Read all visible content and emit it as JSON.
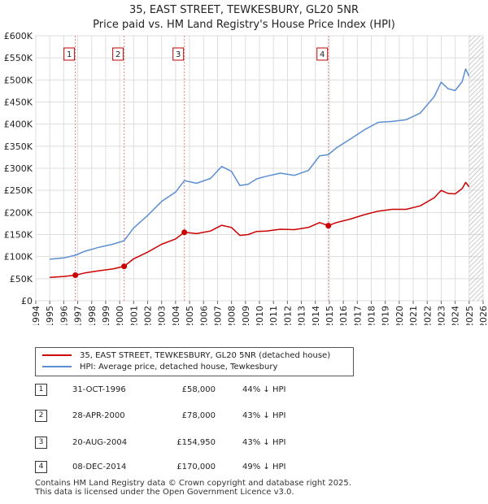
{
  "chart_data": {
    "type": "line",
    "title": "35, EAST STREET, TEWKESBURY, GL20 5NR",
    "subtitle": "Price paid vs. HM Land Registry's House Price Index (HPI)",
    "x_ticks": [
      "1994",
      "1995",
      "1996",
      "1997",
      "1998",
      "1999",
      "2000",
      "2001",
      "2002",
      "2003",
      "2004",
      "2005",
      "2006",
      "2007",
      "2008",
      "2009",
      "2010",
      "2011",
      "2012",
      "2013",
      "2014",
      "2015",
      "2016",
      "2017",
      "2018",
      "2019",
      "2020",
      "2021",
      "2022",
      "2023",
      "2024",
      "2025",
      "2026"
    ],
    "y_ticks": [
      "£0",
      "£50K",
      "£100K",
      "£150K",
      "£200K",
      "£250K",
      "£300K",
      "£350K",
      "£400K",
      "£450K",
      "£500K",
      "£550K",
      "£600K"
    ],
    "xlim": [
      1994,
      2026
    ],
    "ylim": [
      0,
      600000
    ],
    "grid": true,
    "future_hatch_from": 2025.0,
    "series": [
      {
        "name": "35, EAST STREET, TEWKESBURY, GL20 5NR (detached house)",
        "color": "#cc0000",
        "x": [
          1995.0,
          1996.0,
          1996.83,
          1997.5,
          1998.5,
          1999.5,
          2000.32,
          2001.0,
          2002.0,
          2003.0,
          2004.0,
          2004.63,
          2005.5,
          2006.5,
          2007.3,
          2008.0,
          2008.6,
          2009.2,
          2009.8,
          2010.5,
          2011.5,
          2012.5,
          2013.5,
          2014.3,
          2014.93,
          2015.5,
          2016.5,
          2017.5,
          2018.5,
          2019.5,
          2020.5,
          2021.5,
          2022.5,
          2023.0,
          2023.5,
          2024.0,
          2024.5,
          2024.75,
          2025.0
        ],
        "y": [
          53000,
          55000,
          58000,
          63000,
          68000,
          72000,
          78000,
          95000,
          110000,
          128000,
          140000,
          154950,
          152000,
          158000,
          171000,
          166000,
          148000,
          150000,
          157000,
          158000,
          162000,
          161000,
          166000,
          177000,
          170000,
          177000,
          185000,
          195000,
          203000,
          207000,
          207000,
          215000,
          233000,
          250000,
          243000,
          242000,
          254000,
          268000,
          258000
        ]
      },
      {
        "name": "HPI: Average price, detached house, Tewkesbury",
        "color": "#5b8ed1",
        "x": [
          1995.0,
          1996.0,
          1996.83,
          1997.5,
          1998.5,
          1999.5,
          2000.32,
          2001.0,
          2002.0,
          2003.0,
          2004.0,
          2004.63,
          2005.5,
          2006.5,
          2007.3,
          2008.0,
          2008.6,
          2009.2,
          2009.8,
          2010.5,
          2011.5,
          2012.5,
          2013.5,
          2014.3,
          2014.93,
          2015.5,
          2016.5,
          2017.5,
          2018.5,
          2019.5,
          2020.5,
          2021.5,
          2022.5,
          2023.0,
          2023.5,
          2024.0,
          2024.5,
          2024.75,
          2025.0
        ],
        "y": [
          94000,
          97000,
          103000,
          112000,
          121000,
          128000,
          136000,
          165000,
          193000,
          225000,
          246000,
          272000,
          266000,
          277000,
          304000,
          293000,
          261000,
          264000,
          276000,
          282000,
          289000,
          284000,
          295000,
          328000,
          331000,
          346000,
          366000,
          387000,
          404000,
          406000,
          410000,
          425000,
          462000,
          495000,
          480000,
          476000,
          496000,
          525000,
          508000
        ]
      }
    ],
    "sale_markers": [
      {
        "label": "1",
        "x": 1996.83,
        "y": 58000
      },
      {
        "label": "2",
        "x": 2000.32,
        "y": 78000
      },
      {
        "label": "3",
        "x": 2004.63,
        "y": 154950
      },
      {
        "label": "4",
        "x": 2014.93,
        "y": 170000
      }
    ]
  },
  "legend": {
    "property_label": "35, EAST STREET, TEWKESBURY, GL20 5NR (detached house)",
    "hpi_label": "HPI: Average price, detached house, Tewkesbury",
    "property_color": "#cc0000",
    "hpi_color": "#5b8ed1"
  },
  "sales": [
    {
      "num": "1",
      "date": "31-OCT-1996",
      "price": "£58,000",
      "hpi": "44% ↓ HPI"
    },
    {
      "num": "2",
      "date": "28-APR-2000",
      "price": "£78,000",
      "hpi": "43% ↓ HPI"
    },
    {
      "num": "3",
      "date": "20-AUG-2004",
      "price": "£154,950",
      "hpi": "43% ↓ HPI"
    },
    {
      "num": "4",
      "date": "08-DEC-2014",
      "price": "£170,000",
      "hpi": "49% ↓ HPI"
    }
  ],
  "footer": {
    "line1": "Contains HM Land Registry data © Crown copyright and database right 2025.",
    "line2": "This data is licensed under the Open Government Licence v3.0."
  }
}
